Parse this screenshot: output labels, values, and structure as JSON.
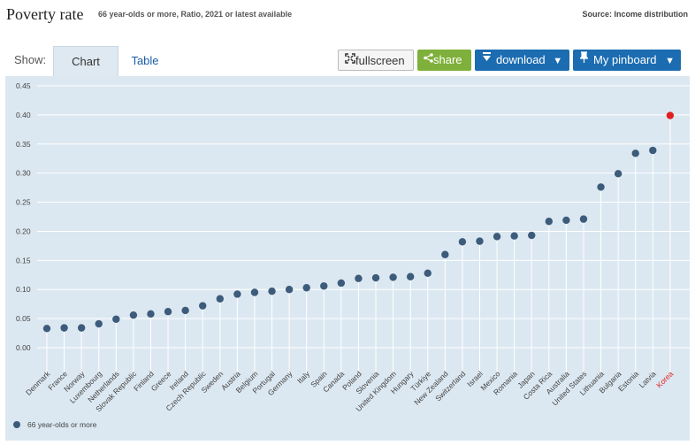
{
  "header": {
    "title": "Poverty rate",
    "subtitle": "66 year-olds or more, Ratio, 2021 or latest available",
    "source": "Source: Income distribution"
  },
  "toolbar": {
    "show_label": "Show:",
    "tab_chart": "Chart",
    "tab_table": "Table",
    "fullscreen_label": "fullscreen",
    "share_label": "share",
    "download_label": "download",
    "pinboard_label": "My pinboard"
  },
  "icons": {
    "fullscreen": "fullscreen-icon",
    "share": "share-icon",
    "download": "download-icon",
    "pin": "pin-icon",
    "caret": "caret-down-icon"
  },
  "colors": {
    "series": "#3d5b7a",
    "highlight": "#e02020",
    "plot_bg": "#dce8f1",
    "share": "#7fb03b",
    "primary": "#1b6cb1"
  },
  "chart_data": {
    "type": "scatter",
    "style": "lollipop",
    "ylim": [
      0,
      0.45
    ],
    "yticks": [
      0.0,
      0.05,
      0.1,
      0.15,
      0.2,
      0.25,
      0.3,
      0.35,
      0.4,
      0.45
    ],
    "grid": true,
    "legend_position": "bottom-left",
    "highlight": "Korea",
    "categories": [
      "Denmark",
      "France",
      "Norway",
      "Luxembourg",
      "Netherlands",
      "Slovak Republic",
      "Finland",
      "Greece",
      "Ireland",
      "Czech Republic",
      "Sweden",
      "Austria",
      "Belgium",
      "Portugal",
      "Germany",
      "Italy",
      "Spain",
      "Canada",
      "Poland",
      "Slovenia",
      "United Kingdom",
      "Hungary",
      "Türkiye",
      "New Zealand",
      "Switzerland",
      "Israel",
      "Mexico",
      "Romania",
      "Japan",
      "Costa Rica",
      "Australia",
      "United States",
      "Lithuania",
      "Bulgaria",
      "Estonia",
      "Latvia",
      "Korea"
    ],
    "series": [
      {
        "name": "66 year-olds or more",
        "values": [
          0.033,
          0.034,
          0.034,
          0.041,
          0.049,
          0.056,
          0.058,
          0.062,
          0.064,
          0.072,
          0.084,
          0.092,
          0.095,
          0.097,
          0.1,
          0.103,
          0.106,
          0.111,
          0.119,
          0.12,
          0.121,
          0.122,
          0.128,
          0.16,
          0.182,
          0.183,
          0.191,
          0.192,
          0.193,
          0.217,
          0.219,
          0.221,
          0.276,
          0.299,
          0.334,
          0.339,
          0.399
        ]
      }
    ]
  }
}
